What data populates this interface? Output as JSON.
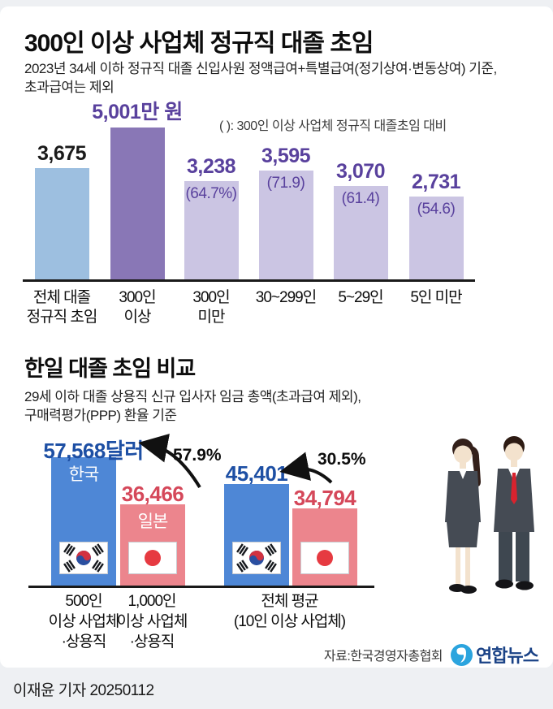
{
  "page": {
    "credit": "이재윤 기자 20250112",
    "source": "자료:한국경영자총협회",
    "logo_text": "연합뉴스"
  },
  "section1": {
    "title": "300인 이상 사업체 정규직 대졸 초임",
    "subtitle": [
      "2023년 34세 이하 정규직 대졸 신입사원 정액급여+특별급여(정기상여·변동상여) 기준,",
      "초과급여는 제외"
    ],
    "note": "( ): 300인 이상 사업체 정규직 대졸초임 대비"
  },
  "section2": {
    "title": "한일 대졸 초임 비교",
    "subtitle": [
      "29세 이하 대졸 상용직 신규 입사자 임금 총액(초과급여 제외),",
      "구매력평가(PPP) 환율 기준"
    ]
  },
  "chart_data": [
    {
      "type": "bar",
      "title": "300인 이상 사업체 정규직 대졸 초임",
      "unit": "만 원",
      "categories": [
        [
          "전체 대졸",
          "정규직 초임"
        ],
        [
          "300인",
          "이상"
        ],
        [
          "300인",
          "미만"
        ],
        [
          "30~299인"
        ],
        [
          "5~29인"
        ],
        [
          "5인 미만"
        ]
      ],
      "values": [
        3675,
        5001,
        3238,
        3595,
        3070,
        2731
      ],
      "value_labels": [
        "3,675",
        "5,001만 원",
        "3,238",
        "3,595",
        "3,070",
        "2,731"
      ],
      "ratio_labels": [
        "",
        "",
        "(64.7%)",
        "(71.9)",
        "(61.4)",
        "(54.6)"
      ],
      "bar_colors": [
        "#9DBFE0",
        "#8977B6",
        "#CBC5E3",
        "#CBC5E3",
        "#CBC5E3",
        "#CBC5E3"
      ],
      "value_colors": [
        "#1a1a1a",
        "#59419D",
        "#59419D",
        "#59419D",
        "#59419D",
        "#59419D"
      ],
      "ylim": [
        0,
        5001
      ],
      "grid": false,
      "note": "( ): 300인 이상 사업체 정규직 대졸초임 대비"
    },
    {
      "type": "bar",
      "title": "한일 대졸 초임 비교",
      "unit": "달러",
      "bars": [
        {
          "country": "한국",
          "tag": "한국",
          "flag": "kr",
          "value": 57568,
          "value_label": "57,568달러",
          "color": "#4E87D6",
          "value_color": "#1D4FA4"
        },
        {
          "country": "일본",
          "tag": "일본",
          "flag": "jp",
          "value": 36466,
          "value_label": "36,466",
          "color": "#EC858D",
          "value_color": "#D5485A"
        },
        {
          "country": "한국",
          "tag": "",
          "flag": "kr",
          "value": 45401,
          "value_label": "45,401",
          "color": "#4E87D6",
          "value_color": "#1D4FA4"
        },
        {
          "country": "일본",
          "tag": "",
          "flag": "jp",
          "value": 34794,
          "value_label": "34,794",
          "color": "#EC858D",
          "value_color": "#D5485A"
        }
      ],
      "diff_labels": [
        "57.9%",
        "30.5%"
      ],
      "category_labels": [
        [
          "500인",
          "이상 사업체",
          "·상용직"
        ],
        [
          "1,000인",
          "이상 사업체",
          "·상용직"
        ],
        [
          "전체 평균",
          "(10인 이상 사업체)"
        ]
      ],
      "ylim": [
        0,
        57568
      ],
      "grid": false
    }
  ]
}
